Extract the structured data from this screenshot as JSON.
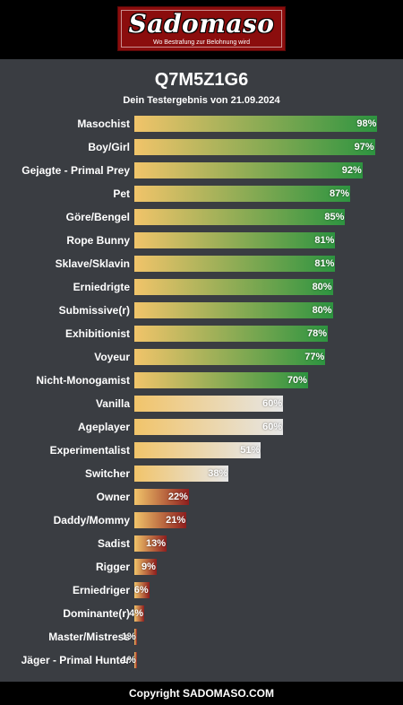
{
  "header": {
    "logo_text": "Sadomaso",
    "logo_tagline": "Wo Bestrafung zur Belohnung wird"
  },
  "result": {
    "code": "Q7M5Z1G6",
    "date_line": "Dein Testergebnis von 21.09.2024"
  },
  "colors": {
    "bar_start": "#f1c46a",
    "high_end": "#2d9440",
    "mid_end": "#e6e6e6",
    "low_end": "#8e1e1e"
  },
  "chart_data": {
    "type": "bar",
    "orientation": "horizontal",
    "categories": [
      "Masochist",
      "Boy/Girl",
      "Gejagte - Primal Prey",
      "Pet",
      "Göre/Bengel",
      "Rope Bunny",
      "Sklave/Sklavin",
      "Erniedrigte",
      "Submissive(r)",
      "Exhibitionist",
      "Voyeur",
      "Nicht-Monogamist",
      "Vanilla",
      "Ageplayer",
      "Experimentalist",
      "Switcher",
      "Owner",
      "Daddy/Mommy",
      "Sadist",
      "Rigger",
      "Erniedriger",
      "Dominante(r)",
      "Master/Mistress",
      "Jäger - Primal Hunter"
    ],
    "values": [
      98,
      97,
      92,
      87,
      85,
      81,
      81,
      80,
      80,
      78,
      77,
      70,
      60,
      60,
      51,
      38,
      22,
      21,
      13,
      9,
      6,
      4,
      1,
      1
    ],
    "labels": [
      "98%",
      "97%",
      "92%",
      "87%",
      "85%",
      "81%",
      "81%",
      "80%",
      "80%",
      "78%",
      "77%",
      "70%",
      "60%",
      "60%",
      "51%",
      "38%",
      "22%",
      "21%",
      "13%",
      "9%",
      "6%",
      "4%",
      "1%",
      "1%"
    ],
    "xlim": [
      0,
      100
    ]
  },
  "footer": {
    "copyright": "Copyright SADOMASO.COM"
  }
}
